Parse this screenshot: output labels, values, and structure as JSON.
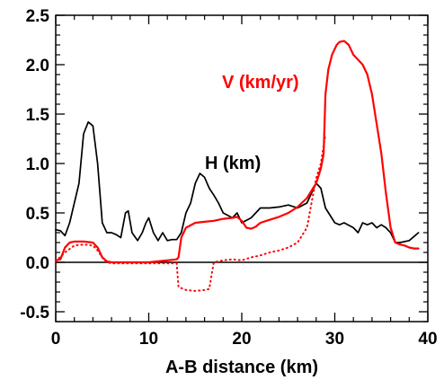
{
  "chart_data": {
    "type": "line",
    "xlabel": "A-B distance (km)",
    "ylabel": "",
    "xlim": [
      0,
      40
    ],
    "ylim": [
      -0.6,
      2.5
    ],
    "x_ticks": [
      0,
      10,
      20,
      30,
      40
    ],
    "x_tick_labels": [
      "0",
      "10",
      "20",
      "30",
      "40"
    ],
    "y_ticks": [
      -0.5,
      0.0,
      0.5,
      1.0,
      1.5,
      2.0,
      2.5
    ],
    "y_tick_labels": [
      "-0.5",
      "0.0",
      "0.5",
      "1.0",
      "1.5",
      "2.0",
      "2.5"
    ],
    "grid": false,
    "reference_line_y": 0,
    "colors": {
      "H": "#000000",
      "V": "#ff0000"
    },
    "series": [
      {
        "name": "H (km)",
        "style": "solid",
        "color": "#000000",
        "points": [
          [
            0,
            0.33
          ],
          [
            0.5,
            0.32
          ],
          [
            1,
            0.27
          ],
          [
            1.5,
            0.4
          ],
          [
            2,
            0.6
          ],
          [
            2.5,
            0.8
          ],
          [
            3,
            1.3
          ],
          [
            3.5,
            1.42
          ],
          [
            4,
            1.38
          ],
          [
            4.5,
            1.0
          ],
          [
            5,
            0.4
          ],
          [
            5.5,
            0.3
          ],
          [
            6,
            0.3
          ],
          [
            6.5,
            0.28
          ],
          [
            7,
            0.25
          ],
          [
            7.5,
            0.5
          ],
          [
            7.8,
            0.52
          ],
          [
            8.2,
            0.3
          ],
          [
            8.8,
            0.22
          ],
          [
            9.3,
            0.3
          ],
          [
            9.7,
            0.4
          ],
          [
            10,
            0.45
          ],
          [
            10.5,
            0.3
          ],
          [
            11,
            0.22
          ],
          [
            11.5,
            0.3
          ],
          [
            12,
            0.22
          ],
          [
            12.5,
            0.23
          ],
          [
            13,
            0.23
          ],
          [
            13.5,
            0.3
          ],
          [
            14,
            0.5
          ],
          [
            14.5,
            0.6
          ],
          [
            15,
            0.8
          ],
          [
            15.5,
            0.9
          ],
          [
            16,
            0.86
          ],
          [
            16.5,
            0.75
          ],
          [
            17,
            0.68
          ],
          [
            17.5,
            0.6
          ],
          [
            18,
            0.5
          ],
          [
            19,
            0.45
          ],
          [
            19.5,
            0.5
          ],
          [
            20,
            0.4
          ],
          [
            21,
            0.45
          ],
          [
            22,
            0.55
          ],
          [
            23,
            0.55
          ],
          [
            24,
            0.56
          ],
          [
            25,
            0.58
          ],
          [
            26,
            0.55
          ],
          [
            27,
            0.6
          ],
          [
            27.5,
            0.7
          ],
          [
            28,
            0.8
          ],
          [
            28.5,
            0.75
          ],
          [
            29,
            0.55
          ],
          [
            30,
            0.4
          ],
          [
            30.5,
            0.38
          ],
          [
            31,
            0.4
          ],
          [
            32,
            0.35
          ],
          [
            32.5,
            0.3
          ],
          [
            33,
            0.4
          ],
          [
            33.5,
            0.38
          ],
          [
            34,
            0.4
          ],
          [
            34.5,
            0.35
          ],
          [
            35,
            0.38
          ],
          [
            35.5,
            0.35
          ],
          [
            36,
            0.3
          ],
          [
            36.5,
            0.2
          ],
          [
            37,
            0.2
          ],
          [
            38,
            0.22
          ],
          [
            39,
            0.3
          ]
        ]
      },
      {
        "name": "V (km/yr)",
        "style": "solid",
        "color": "#ff0000",
        "points": [
          [
            0,
            0.02
          ],
          [
            0.5,
            0.03
          ],
          [
            1,
            0.15
          ],
          [
            1.5,
            0.2
          ],
          [
            2,
            0.21
          ],
          [
            3,
            0.21
          ],
          [
            4,
            0.2
          ],
          [
            4.5,
            0.15
          ],
          [
            5,
            0.05
          ],
          [
            5.5,
            0.01
          ],
          [
            6,
            0.0
          ],
          [
            7,
            0.0
          ],
          [
            8,
            0.0
          ],
          [
            9,
            0.0
          ],
          [
            10,
            0.0
          ],
          [
            11,
            0.01
          ],
          [
            12,
            0.02
          ],
          [
            13,
            0.03
          ],
          [
            13.2,
            0.05
          ],
          [
            13.5,
            0.25
          ],
          [
            14,
            0.35
          ],
          [
            15,
            0.4
          ],
          [
            16,
            0.41
          ],
          [
            17,
            0.42
          ],
          [
            18,
            0.44
          ],
          [
            19,
            0.45
          ],
          [
            19.5,
            0.46
          ],
          [
            20,
            0.42
          ],
          [
            20.5,
            0.35
          ],
          [
            21,
            0.34
          ],
          [
            21.5,
            0.36
          ],
          [
            22,
            0.4
          ],
          [
            23,
            0.43
          ],
          [
            24,
            0.46
          ],
          [
            25,
            0.5
          ],
          [
            26,
            0.56
          ],
          [
            27,
            0.65
          ],
          [
            28,
            0.8
          ],
          [
            28.5,
            0.95
          ],
          [
            28.8,
            1.1
          ],
          [
            29,
            1.7
          ],
          [
            29.3,
            1.95
          ],
          [
            29.7,
            2.1
          ],
          [
            30.2,
            2.2
          ],
          [
            30.5,
            2.23
          ],
          [
            31,
            2.24
          ],
          [
            31.5,
            2.2
          ],
          [
            32,
            2.1
          ],
          [
            32.5,
            2.05
          ],
          [
            33,
            2.0
          ],
          [
            33.5,
            1.9
          ],
          [
            34,
            1.7
          ],
          [
            34.5,
            1.4
          ],
          [
            35,
            1.1
          ],
          [
            35.5,
            0.7
          ],
          [
            36,
            0.35
          ],
          [
            36.5,
            0.2
          ],
          [
            37,
            0.18
          ],
          [
            37.5,
            0.17
          ],
          [
            38,
            0.15
          ],
          [
            38.5,
            0.14
          ],
          [
            39,
            0.14
          ]
        ]
      },
      {
        "name": "",
        "style": "dotted",
        "color": "#ff0000",
        "points": [
          [
            0,
            0.01
          ],
          [
            1,
            0.1
          ],
          [
            2,
            0.17
          ],
          [
            3,
            0.18
          ],
          [
            4,
            0.17
          ],
          [
            4.5,
            0.12
          ],
          [
            5,
            0.05
          ],
          [
            5.5,
            0.0
          ],
          [
            6,
            -0.01
          ],
          [
            13,
            -0.01
          ],
          [
            13.2,
            -0.25
          ],
          [
            14,
            -0.28
          ],
          [
            15,
            -0.29
          ],
          [
            16,
            -0.28
          ],
          [
            16.5,
            -0.27
          ],
          [
            16.8,
            -0.1
          ],
          [
            17,
            0.0
          ],
          [
            18,
            0.02
          ],
          [
            19,
            0.03
          ],
          [
            20,
            0.02
          ],
          [
            21,
            0.05
          ],
          [
            22,
            0.07
          ],
          [
            23,
            0.1
          ],
          [
            24,
            0.12
          ],
          [
            25,
            0.15
          ],
          [
            26,
            0.2
          ],
          [
            27,
            0.35
          ],
          [
            27.5,
            0.6
          ],
          [
            28,
            0.85
          ],
          [
            28.5,
            1.0
          ],
          [
            29,
            1.3
          ]
        ]
      }
    ]
  },
  "labels": {
    "h_label": "H (km)",
    "v_label": "V (km/yr)"
  }
}
